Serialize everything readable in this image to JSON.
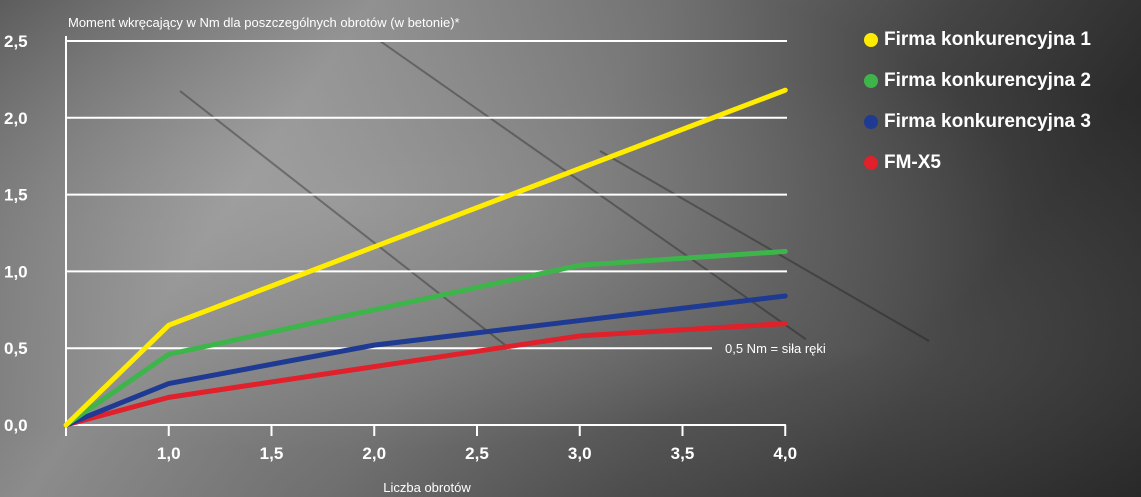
{
  "chart_data": {
    "type": "line",
    "title": "Moment wkręcający w Nm dla poszczególnych obrotów (w betonie)*",
    "xlabel": "Liczba obrotów",
    "ylabel": "",
    "xlim": [
      1.0,
      4.0
    ],
    "ylim": [
      0.0,
      2.5
    ],
    "x_ticks": [
      "1,0",
      "1,5",
      "2,0",
      "2,5",
      "3,0",
      "3,5",
      "4,0"
    ],
    "y_ticks": [
      "0,0",
      "0,5",
      "1,0",
      "1,5",
      "2,0",
      "2,5"
    ],
    "grid": true,
    "legend_position": "right",
    "annotation": "0,5 Nm = siła ręki",
    "series": [
      {
        "name": "Firma konkurencyjna 1",
        "color": "#ffec00",
        "x": [
          0.5,
          1.0,
          4.0
        ],
        "y": [
          0.0,
          0.65,
          2.18
        ]
      },
      {
        "name": "Firma konkurencyjna 2",
        "color": "#3db54a",
        "x": [
          0.5,
          1.0,
          3.0,
          4.0
        ],
        "y": [
          0.0,
          0.46,
          1.04,
          1.13
        ]
      },
      {
        "name": "Firma konkurencyjna 3",
        "color": "#1f3a93",
        "x": [
          0.5,
          1.0,
          2.0,
          3.0,
          4.0
        ],
        "y": [
          0.0,
          0.27,
          0.52,
          0.68,
          0.84
        ]
      },
      {
        "name": "FM-X5",
        "color": "#e0202a",
        "x": [
          0.5,
          1.0,
          2.0,
          3.0,
          4.0
        ],
        "y": [
          0.0,
          0.18,
          0.38,
          0.58,
          0.66
        ]
      }
    ]
  }
}
